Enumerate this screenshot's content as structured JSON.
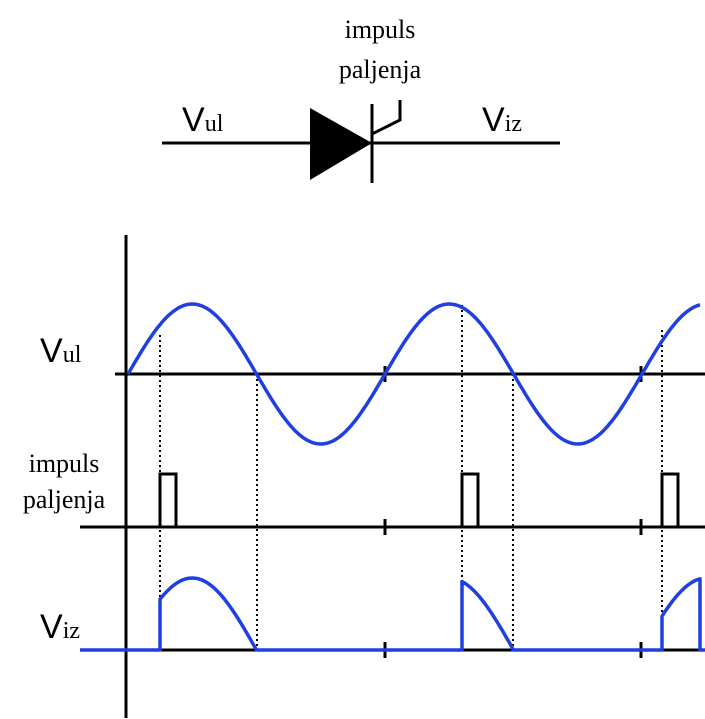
{
  "symbol": {
    "gate_label": [
      "impuls",
      "paljenja"
    ],
    "input": {
      "main": "V",
      "sub": "ul"
    },
    "output": {
      "main": "V",
      "sub": "iz"
    }
  },
  "waveforms": {
    "input": {
      "main": "V",
      "sub": "ul"
    },
    "pulse": [
      "impuls",
      "paljenja"
    ],
    "output": {
      "main": "V",
      "sub": "iz"
    }
  }
}
